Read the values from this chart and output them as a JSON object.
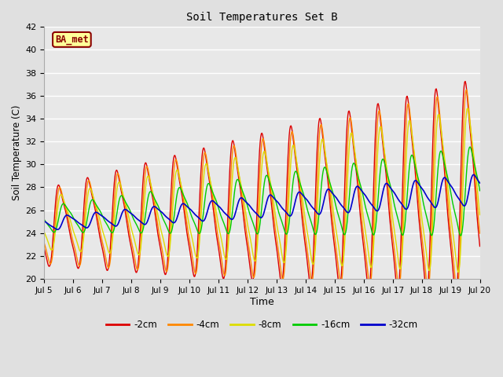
{
  "title": "Soil Temperatures Set B",
  "xlabel": "Time",
  "ylabel": "Soil Temperature (C)",
  "ylim": [
    20,
    42
  ],
  "xlim": [
    0,
    360
  ],
  "annotation_text": "BA_met",
  "legend_labels": [
    "-2cm",
    "-4cm",
    "-8cm",
    "-16cm",
    "-32cm"
  ],
  "line_colors": [
    "#dd0000",
    "#ff8800",
    "#dddd00",
    "#00cc00",
    "#0000cc"
  ],
  "line_widths": [
    1.0,
    1.0,
    1.0,
    1.0,
    1.2
  ],
  "bg_color": "#e0e0e0",
  "plot_bg_color": "#e8e8e8",
  "grid_color": "#ffffff",
  "tick_labels": [
    "Jul 5",
    "Jul 6",
    "Jul 7",
    "Jul 8",
    "Jul 9",
    "Jul 10",
    "Jul 11",
    "Jul 12",
    "Jul 13",
    "Jul 14",
    "Jul 15",
    "Jul 16",
    "Jul 17",
    "Jul 18",
    "Jul 19",
    "Jul 20"
  ],
  "tick_positions": [
    0,
    24,
    48,
    72,
    96,
    120,
    144,
    168,
    192,
    216,
    240,
    264,
    288,
    312,
    336,
    360
  ],
  "yticks": [
    20,
    22,
    24,
    26,
    28,
    30,
    32,
    34,
    36,
    38,
    40,
    42
  ]
}
